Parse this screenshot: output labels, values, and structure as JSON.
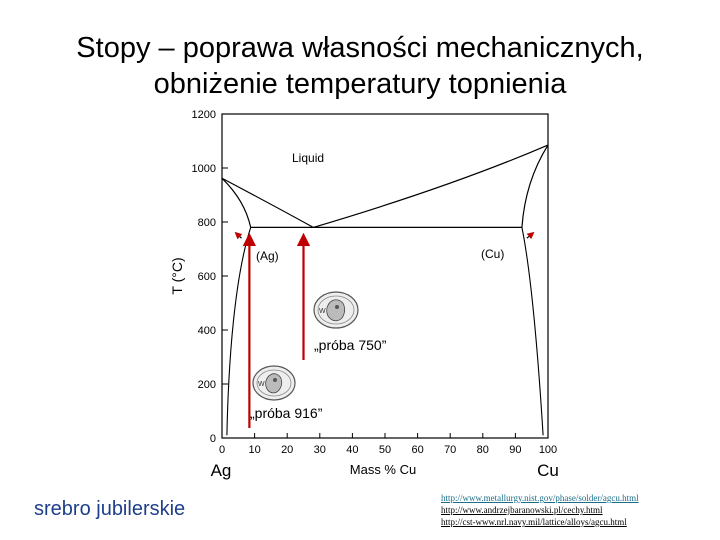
{
  "slide": {
    "title_line1": "Stopy – poprawa własności mechanicznych,",
    "title_line2": "obniżenie temperatury topnienia",
    "caption": "srebro jubilerskie",
    "links": [
      "http://www.metallurgy.nist.gov/phase/solder/agcu.html",
      "http://www.andrzejbaranowski.pl/cechy.html",
      "http://cst-www.nrl.navy.mil/lattice/alloys/agcu.html"
    ]
  },
  "diagram": {
    "y_axis_label": "T (°C)",
    "x_axis_label": "Mass % Cu",
    "x_left_element": "Ag",
    "x_right_element": "Cu",
    "y_ticks": [
      0,
      200,
      400,
      600,
      800,
      1000,
      1200
    ],
    "x_ticks": [
      0,
      10,
      20,
      30,
      40,
      50,
      60,
      70,
      80,
      90,
      100
    ],
    "region_liquid": "Liquid",
    "region_ag": "(Ag)",
    "region_cu": "(Cu)",
    "label_probe_750": "„próba 750”",
    "label_probe_916": "„próba 916”",
    "probe_750_composition": 25,
    "probe_916_composition": 8.4,
    "arrow_color": "#c00000",
    "eutectic": {
      "composition": 28,
      "temperature": 780
    },
    "melting_point_ag": 962,
    "melting_point_cu": 1085,
    "icons": [
      "coin-hallmark-icon",
      "coin-hallmark-icon"
    ]
  }
}
